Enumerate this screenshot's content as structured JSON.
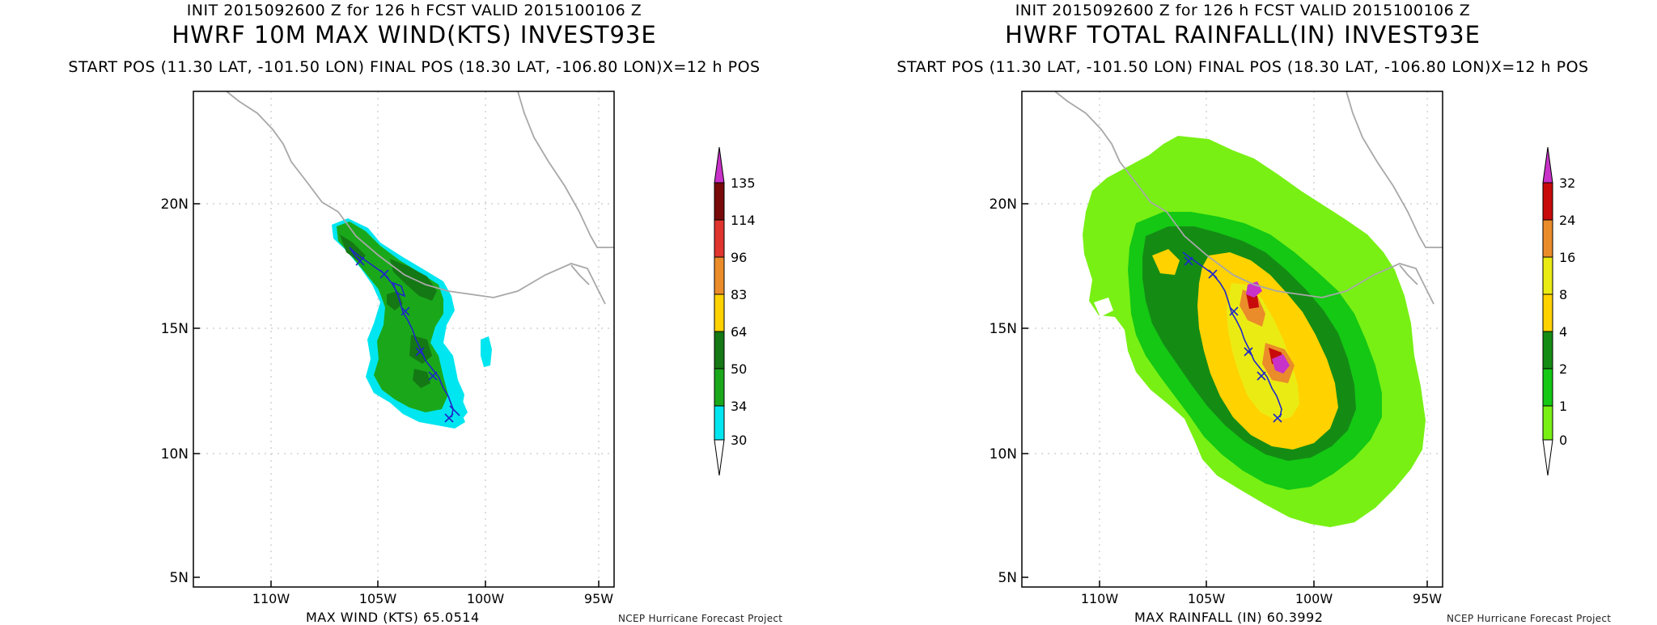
{
  "colors": {
    "wind": [
      "#00e6f0",
      "#1aa81a",
      "#147814",
      "#ffd200",
      "#ea8c2a",
      "#e0342e",
      "#780a0a",
      "#c832c8"
    ],
    "rain": [
      "#78f014",
      "#14c814",
      "#148c14",
      "#ffd200",
      "#ebeb14",
      "#ea8c2a",
      "#c80a0a",
      "#c832c8"
    ],
    "track": "#1e28c8",
    "coast": "#a8a8a8",
    "grid": "#bbbbbb"
  },
  "panels": {
    "wind": {
      "init_line": "INIT 2015092600 Z for 126 h FCST VALID 2015100106 Z",
      "title": "HWRF 10M MAX WIND(KTS) INVEST93E",
      "pos_line": "START POS (11.30 LAT, -101.50 LON)  FINAL POS (18.30 LAT, -106.80 LON)X=12 h POS",
      "lat_labels": [
        "20N",
        "15N",
        "10N",
        "5N"
      ],
      "lon_labels": [
        "110W",
        "105W",
        "100W",
        "95W"
      ],
      "colorbar_labels": [
        "135",
        "114",
        "96",
        "83",
        "64",
        "50",
        "34",
        "30"
      ],
      "footer_max": "MAX WIND (KTS) 65.0514",
      "footer_credit": "NCEP Hurricane Forecast Project"
    },
    "rain": {
      "init_line": "INIT 2015092600 Z for 126 h FCST VALID 2015100106 Z",
      "title": "HWRF TOTAL RAINFALL(IN) INVEST93E",
      "pos_line": "START POS (11.30 LAT, -101.50 LON)  FINAL POS (18.30 LAT, -106.80 LON)X=12 h POS",
      "lat_labels": [
        "20N",
        "15N",
        "10N",
        "5N"
      ],
      "lon_labels": [
        "110W",
        "105W",
        "100W",
        "95W"
      ],
      "colorbar_labels": [
        "32",
        "24",
        "16",
        "8",
        "4",
        "2",
        "1",
        "0"
      ],
      "footer_max": "MAX RAINFALL (IN) 60.3992",
      "footer_credit": "NCEP Hurricane Forecast Project"
    }
  }
}
